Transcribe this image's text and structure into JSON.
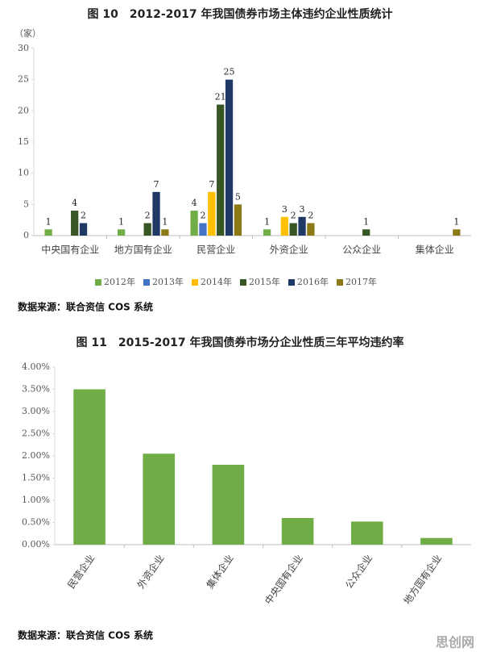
{
  "chart_data": [
    {
      "type": "bar",
      "title": "图 10　2012-2017 年我国债券市场主体违约企业性质统计",
      "y_label": "（家）",
      "categories": [
        "中央国有企业",
        "地方国有企业",
        "民营企业",
        "外资企业",
        "公众企业",
        "集体企业"
      ],
      "series": [
        {
          "name": "2012年",
          "color": "#70ad47",
          "values": [
            1,
            1,
            4,
            1,
            null,
            null
          ]
        },
        {
          "name": "2013年",
          "color": "#4472c4",
          "values": [
            null,
            null,
            2,
            null,
            null,
            null
          ]
        },
        {
          "name": "2014年",
          "color": "#ffc000",
          "values": [
            null,
            null,
            7,
            3,
            null,
            null
          ]
        },
        {
          "name": "2015年",
          "color": "#375623",
          "values": [
            4,
            2,
            21,
            2,
            1,
            null
          ]
        },
        {
          "name": "2016年",
          "color": "#1f3864",
          "values": [
            2,
            7,
            25,
            3,
            null,
            null
          ]
        },
        {
          "name": "2017年",
          "color": "#8c7a16",
          "values": [
            null,
            1,
            5,
            2,
            null,
            1
          ]
        }
      ],
      "ylim": [
        0,
        30
      ],
      "yticks": [
        0,
        5,
        10,
        15,
        20,
        25,
        30
      ],
      "grid": false,
      "legend": "bottom",
      "source": "数据来源：联合资信 COS 系统"
    },
    {
      "type": "bar",
      "title": "图 11　2015-2017 年我国债券市场分企业性质三年平均违约率",
      "categories": [
        "民营企业",
        "外资企业",
        "集体企业",
        "中央国有企业",
        "公众企业",
        "地方国有企业"
      ],
      "values": [
        3.5,
        2.05,
        1.8,
        0.6,
        0.52,
        0.15
      ],
      "color": "#70ad47",
      "ylim": [
        0,
        4
      ],
      "yticks": [
        {
          "value": 0,
          "label": "0.00%"
        },
        {
          "value": 0.5,
          "label": "0.50%"
        },
        {
          "value": 1,
          "label": "1.00%"
        },
        {
          "value": 1.5,
          "label": "1.50%"
        },
        {
          "value": 2,
          "label": "2.00%"
        },
        {
          "value": 2.5,
          "label": "2.50%"
        },
        {
          "value": 3,
          "label": "3.00%"
        },
        {
          "value": 3.5,
          "label": "3.50%"
        },
        {
          "value": 4,
          "label": "4.00%"
        }
      ],
      "grid": false,
      "source": "数据来源：联合资信 COS 系统"
    }
  ],
  "watermark": "思创网"
}
